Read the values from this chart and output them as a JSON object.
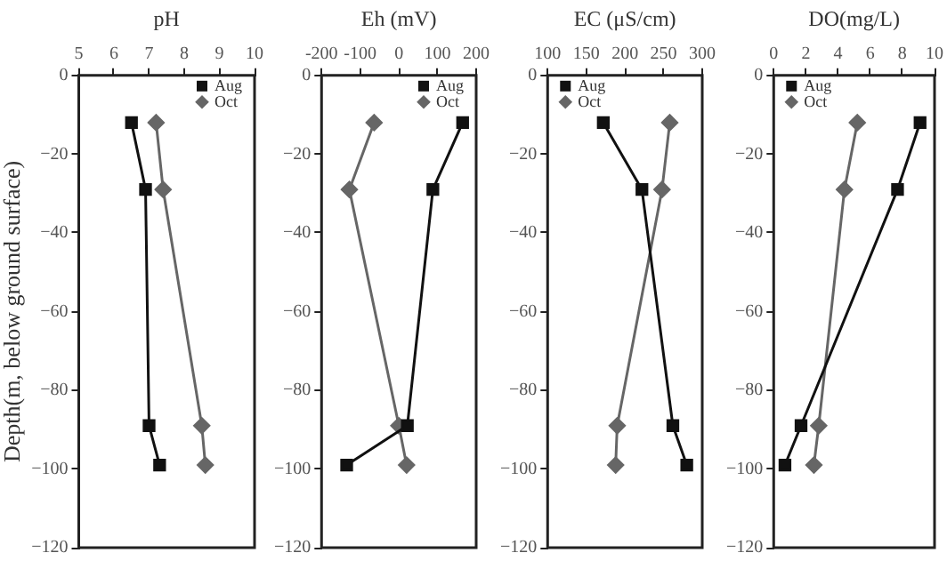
{
  "chart_data": [
    {
      "type": "line",
      "xlabel": "pH",
      "ylabel": "Depth(m, below ground surface)",
      "xlim": [
        5,
        10
      ],
      "xticks": [
        5,
        6,
        7,
        8,
        9,
        10
      ],
      "ylim": [
        -120,
        0
      ],
      "yticks": [
        0,
        -20,
        -40,
        -60,
        -80,
        -100,
        -120
      ],
      "grid": false,
      "legend": "top right",
      "series": [
        {
          "name": "Aug",
          "color": "#111111",
          "marker": "square",
          "x": [
            6.5,
            6.9,
            7.0,
            7.3
          ],
          "values": [
            -12,
            -29,
            -89,
            -99
          ]
        },
        {
          "name": "Oct",
          "color": "#666666",
          "marker": "diamond",
          "x": [
            7.2,
            7.4,
            8.5,
            8.6
          ],
          "values": [
            -12,
            -29,
            -89,
            -99
          ]
        }
      ]
    },
    {
      "type": "line",
      "xlabel": "Eh (mV)",
      "xlim": [
        -200,
        200
      ],
      "xticks": [
        -200,
        -100,
        0,
        100,
        200
      ],
      "ylim": [
        -120,
        0
      ],
      "yticks": [
        0,
        -20,
        -40,
        -60,
        -80,
        -100,
        -120
      ],
      "grid": false,
      "legend": "top right",
      "series": [
        {
          "name": "Aug",
          "color": "#111111",
          "marker": "square",
          "x": [
            165,
            88,
            22,
            -135
          ],
          "values": [
            -12,
            -29,
            -89,
            -99
          ]
        },
        {
          "name": "Oct",
          "color": "#666666",
          "marker": "diamond",
          "x": [
            -64,
            -128,
            0,
            20
          ],
          "values": [
            -12,
            -29,
            -89,
            -99
          ]
        }
      ]
    },
    {
      "type": "line",
      "xlabel": "EC (μS/cm)",
      "xlim": [
        100,
        300
      ],
      "xticks": [
        100,
        150,
        200,
        250,
        300
      ],
      "ylim": [
        -120,
        0
      ],
      "yticks": [
        0,
        -20,
        -40,
        -60,
        -80,
        -100,
        -120
      ],
      "grid": false,
      "legend": "top left",
      "series": [
        {
          "name": "Aug",
          "color": "#111111",
          "marker": "square",
          "x": [
            172,
            222,
            262,
            280
          ],
          "values": [
            -12,
            -29,
            -89,
            -99
          ]
        },
        {
          "name": "Oct",
          "color": "#666666",
          "marker": "diamond",
          "x": [
            258,
            248,
            190,
            188
          ],
          "values": [
            -12,
            -29,
            -89,
            -99
          ]
        }
      ]
    },
    {
      "type": "line",
      "xlabel": "DO(mg/L)",
      "xlim": [
        0,
        10
      ],
      "xticks": [
        0,
        2,
        4,
        6,
        8,
        10
      ],
      "ylim": [
        -120,
        0
      ],
      "yticks": [
        0,
        -20,
        -40,
        -60,
        -80,
        -100,
        -120
      ],
      "grid": false,
      "legend": "top left",
      "series": [
        {
          "name": "Aug",
          "color": "#111111",
          "marker": "square",
          "x": [
            9.1,
            7.7,
            1.7,
            0.7
          ],
          "values": [
            -12,
            -29,
            -89,
            -99
          ]
        },
        {
          "name": "Oct",
          "color": "#666666",
          "marker": "diamond",
          "x": [
            5.2,
            4.4,
            2.8,
            2.5
          ],
          "values": [
            -12,
            -29,
            -89,
            -99
          ]
        }
      ]
    }
  ]
}
